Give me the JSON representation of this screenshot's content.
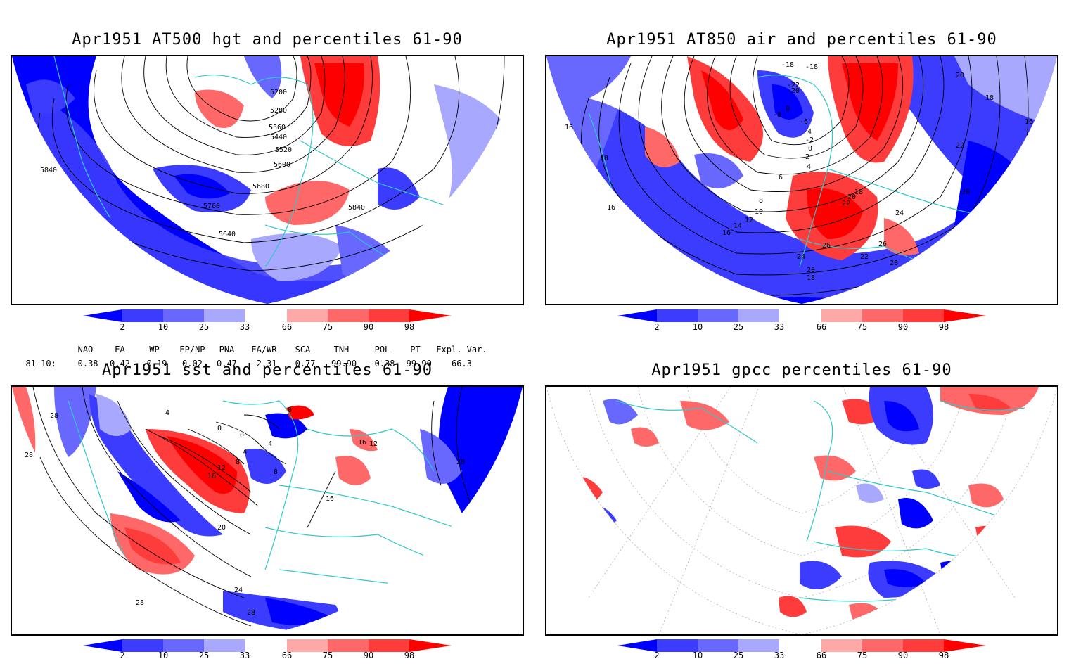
{
  "panels": [
    {
      "title": "Apr1951 AT500 hgt and percentiles 61-90",
      "contour_labels": [
        "5200",
        "5280",
        "5360",
        "5440",
        "5520",
        "5600",
        "5680",
        "5760",
        "5840",
        "5640",
        "5840"
      ]
    },
    {
      "title": "Apr1951 AT850 air and percentiles 61-90",
      "contour_labels": [
        "-18",
        "-18",
        "-22",
        "-20",
        "-8",
        "0",
        "-6",
        "-4",
        "-2",
        "0",
        "2",
        "4",
        "6",
        "8",
        "10",
        "12",
        "14",
        "16",
        "18",
        "20",
        "22",
        "24",
        "24",
        "26",
        "26",
        "22",
        "20",
        "20",
        "18",
        "16",
        "16",
        "18",
        "20",
        "22",
        "20",
        "16",
        "18"
      ]
    },
    {
      "title": "Apr1951 sst and percentiles 61-90",
      "contour_labels": [
        "28",
        "28",
        "4",
        "0",
        "0",
        "0",
        "4",
        "4",
        "8",
        "8",
        "12",
        "16",
        "20",
        "24",
        "28",
        "28",
        "16",
        "16",
        "12",
        "28"
      ]
    },
    {
      "title": "Apr1951 gpcc percentiles 61-90",
      "contour_labels": []
    }
  ],
  "colorbar": {
    "labels": [
      "2",
      "10",
      "25",
      "33",
      "66",
      "75",
      "90",
      "98"
    ],
    "colors": [
      "#0000ff",
      "#3c3cff",
      "#6868ff",
      "#a8a8ff",
      "#ffffff",
      "#ffa8a8",
      "#ff6868",
      "#ff3c3c",
      "#ff0000"
    ]
  },
  "indices": {
    "headers": [
      "NAO",
      "EA",
      "WP",
      "EP/NP",
      "PNA",
      "EA/WR",
      "SCA",
      "TNH",
      "POL",
      "PT",
      "Expl. Var."
    ],
    "row_label": "81-10:",
    "values": [
      "-0.38",
      "0.42",
      "-0.19",
      "0.02",
      "0.47",
      "-2.31",
      "-0.77",
      "-99.90",
      "-0.38",
      "-99.90",
      "66.3"
    ]
  },
  "colors": {
    "coast": "#30c8c8",
    "blue": "#0000ff",
    "red": "#ff0000"
  }
}
